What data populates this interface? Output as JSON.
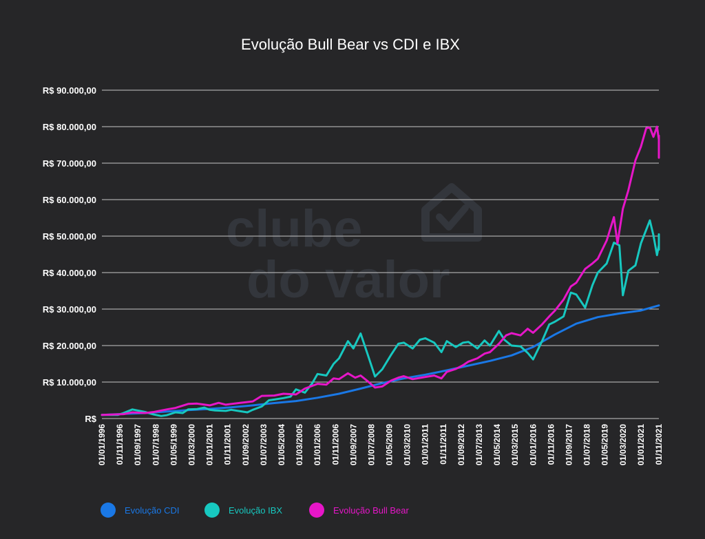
{
  "chart_data": {
    "type": "line",
    "title": "Evolução  Bull  Bear vs CDI e IBX",
    "xlabel": "",
    "ylabel": "",
    "ylim": [
      0,
      90000
    ],
    "y_ticks": [
      0,
      10000,
      20000,
      30000,
      40000,
      50000,
      60000,
      70000,
      80000,
      90000
    ],
    "y_tick_labels": [
      "R$",
      "R$ 10.000,00",
      "R$ 20.000,00",
      "R$ 30.000,00",
      "R$ 40.000,00",
      "R$ 50.000,00",
      "R$ 60.000,00",
      "R$ 70.000,00",
      "R$ 80.000,00",
      "R$ 90.000,00"
    ],
    "x_tick_labels": [
      "01/01/1996",
      "01/11/1996",
      "01/09/1997",
      "01/07/1998",
      "01/05/1999",
      "01/03/2000",
      "01/01/2001",
      "01/11/2001",
      "01/09/2002",
      "01/07/2003",
      "01/05/2004",
      "01/03/2005",
      "01/01/2006",
      "01/11/2006",
      "01/09/2007",
      "01/07/2008",
      "01/05/2009",
      "01/03/2010",
      "01/01/2011",
      "01/11/2011",
      "01/09/2012",
      "01/07/2013",
      "01/05/2014",
      "01/03/2015",
      "01/01/2016",
      "01/11/2016",
      "01/09/2017",
      "01/07/2018",
      "01/05/2019",
      "01/03/2020",
      "01/01/2021",
      "01/11/2021"
    ],
    "x_range": [
      "1996-01-01",
      "2021-11-01"
    ],
    "grid": true,
    "legend_position": "bottom-left",
    "series": [
      {
        "name": "Evolução CDI",
        "color": "#1a78e6",
        "points": [
          [
            "1996-01-01",
            1000
          ],
          [
            "1997-01-01",
            1280
          ],
          [
            "1998-01-01",
            1500
          ],
          [
            "1999-01-01",
            1900
          ],
          [
            "2000-01-01",
            2300
          ],
          [
            "2001-01-01",
            2650
          ],
          [
            "2002-01-01",
            3050
          ],
          [
            "2003-01-01",
            3600
          ],
          [
            "2004-01-01",
            4250
          ],
          [
            "2005-01-01",
            4800
          ],
          [
            "2006-01-01",
            5700
          ],
          [
            "2007-01-01",
            6800
          ],
          [
            "2008-01-01",
            8200
          ],
          [
            "2009-01-01",
            9700
          ],
          [
            "2010-01-01",
            11000
          ],
          [
            "2011-01-01",
            12000
          ],
          [
            "2012-01-01",
            13200
          ],
          [
            "2013-01-01",
            14500
          ],
          [
            "2014-01-01",
            15800
          ],
          [
            "2015-01-01",
            17300
          ],
          [
            "2016-01-01",
            19600
          ],
          [
            "2017-01-01",
            23000
          ],
          [
            "2018-01-01",
            26000
          ],
          [
            "2019-01-01",
            27800
          ],
          [
            "2020-01-01",
            28800
          ],
          [
            "2021-01-01",
            29600
          ],
          [
            "2021-11-01",
            31000
          ]
        ]
      },
      {
        "name": "Evolução IBX",
        "color": "#17c8c0",
        "points": [
          [
            "1996-01-01",
            1000
          ],
          [
            "1996-10-01",
            1000
          ],
          [
            "1997-01-01",
            1500
          ],
          [
            "1997-06-01",
            2500
          ],
          [
            "1998-01-01",
            1800
          ],
          [
            "1998-06-01",
            1100
          ],
          [
            "1998-10-01",
            700
          ],
          [
            "1999-01-01",
            900
          ],
          [
            "1999-06-01",
            1700
          ],
          [
            "1999-10-01",
            1500
          ],
          [
            "2000-01-01",
            2500
          ],
          [
            "2000-06-01",
            2600
          ],
          [
            "2000-10-01",
            3000
          ],
          [
            "2001-01-01",
            2400
          ],
          [
            "2001-04-01",
            2200
          ],
          [
            "2001-10-01",
            2100
          ],
          [
            "2002-01-01",
            2400
          ],
          [
            "2002-06-01",
            2000
          ],
          [
            "2002-10-01",
            1700
          ],
          [
            "2003-01-01",
            2400
          ],
          [
            "2003-06-01",
            3300
          ],
          [
            "2003-10-01",
            5000
          ],
          [
            "2004-01-01",
            5200
          ],
          [
            "2004-06-01",
            5600
          ],
          [
            "2004-10-01",
            6000
          ],
          [
            "2005-01-01",
            8000
          ],
          [
            "2005-06-01",
            7100
          ],
          [
            "2005-10-01",
            9600
          ],
          [
            "2006-01-01",
            12200
          ],
          [
            "2006-06-01",
            11800
          ],
          [
            "2006-10-01",
            15000
          ],
          [
            "2007-01-01",
            16500
          ],
          [
            "2007-06-01",
            21200
          ],
          [
            "2007-09-01",
            19200
          ],
          [
            "2008-01-01",
            23300
          ],
          [
            "2008-05-01",
            17500
          ],
          [
            "2008-09-01",
            11500
          ],
          [
            "2009-01-01",
            13500
          ],
          [
            "2009-06-01",
            17500
          ],
          [
            "2009-10-01",
            20500
          ],
          [
            "2010-01-01",
            20800
          ],
          [
            "2010-06-01",
            19200
          ],
          [
            "2010-10-01",
            21600
          ],
          [
            "2011-01-01",
            22000
          ],
          [
            "2011-06-01",
            20800
          ],
          [
            "2011-10-01",
            18200
          ],
          [
            "2012-01-01",
            21200
          ],
          [
            "2012-06-01",
            19600
          ],
          [
            "2012-10-01",
            20800
          ],
          [
            "2013-01-01",
            21000
          ],
          [
            "2013-06-01",
            19200
          ],
          [
            "2013-10-01",
            21400
          ],
          [
            "2014-01-01",
            20000
          ],
          [
            "2014-06-01",
            24000
          ],
          [
            "2014-09-01",
            21600
          ],
          [
            "2015-01-01",
            20000
          ],
          [
            "2015-06-01",
            19800
          ],
          [
            "2015-10-01",
            18000
          ],
          [
            "2016-01-01",
            16200
          ],
          [
            "2016-06-01",
            21200
          ],
          [
            "2016-10-01",
            25800
          ],
          [
            "2017-01-01",
            26500
          ],
          [
            "2017-06-01",
            28000
          ],
          [
            "2017-10-01",
            34500
          ],
          [
            "2018-01-01",
            34000
          ],
          [
            "2018-06-01",
            30400
          ],
          [
            "2018-10-01",
            36500
          ],
          [
            "2019-01-01",
            40000
          ],
          [
            "2019-06-01",
            42500
          ],
          [
            "2019-10-01",
            48200
          ],
          [
            "2020-01-01",
            47500
          ],
          [
            "2020-03-01",
            33800
          ],
          [
            "2020-06-01",
            40500
          ],
          [
            "2020-10-01",
            42000
          ],
          [
            "2021-01-01",
            48000
          ],
          [
            "2021-06-01",
            54300
          ],
          [
            "2021-08-01",
            50200
          ],
          [
            "2021-10-01",
            44800
          ],
          [
            "2021-11-01",
            47500
          ],
          [
            "2021-12-01",
            50500
          ],
          [
            "2022-01-01",
            46300
          ]
        ]
      },
      {
        "name": "Evolução Bull Bear",
        "color": "#e616c8",
        "points": [
          [
            "1996-01-01",
            1000
          ],
          [
            "1997-01-01",
            1200
          ],
          [
            "1997-06-01",
            1700
          ],
          [
            "1998-01-01",
            1500
          ],
          [
            "1998-06-01",
            1800
          ],
          [
            "1999-01-01",
            2500
          ],
          [
            "1999-06-01",
            2900
          ],
          [
            "2000-01-01",
            4000
          ],
          [
            "2000-06-01",
            4100
          ],
          [
            "2001-01-01",
            3600
          ],
          [
            "2001-06-01",
            4300
          ],
          [
            "2001-10-01",
            3800
          ],
          [
            "2002-01-01",
            4000
          ],
          [
            "2002-06-01",
            4300
          ],
          [
            "2003-01-01",
            4700
          ],
          [
            "2003-06-01",
            6200
          ],
          [
            "2004-01-01",
            6300
          ],
          [
            "2004-06-01",
            6800
          ],
          [
            "2005-01-01",
            6600
          ],
          [
            "2005-06-01",
            8200
          ],
          [
            "2006-01-01",
            9500
          ],
          [
            "2006-06-01",
            9300
          ],
          [
            "2006-10-01",
            11000
          ],
          [
            "2007-01-01",
            10800
          ],
          [
            "2007-06-01",
            12400
          ],
          [
            "2007-10-01",
            11200
          ],
          [
            "2008-01-01",
            11800
          ],
          [
            "2008-05-01",
            10200
          ],
          [
            "2008-09-01",
            8500
          ],
          [
            "2009-01-01",
            8800
          ],
          [
            "2009-06-01",
            10400
          ],
          [
            "2009-10-01",
            11200
          ],
          [
            "2010-01-01",
            11600
          ],
          [
            "2010-06-01",
            10800
          ],
          [
            "2011-01-01",
            11400
          ],
          [
            "2011-06-01",
            11800
          ],
          [
            "2011-10-01",
            11000
          ],
          [
            "2012-01-01",
            12800
          ],
          [
            "2012-06-01",
            13600
          ],
          [
            "2012-10-01",
            14600
          ],
          [
            "2013-01-01",
            15600
          ],
          [
            "2013-06-01",
            16500
          ],
          [
            "2013-10-01",
            17800
          ],
          [
            "2014-01-01",
            18200
          ],
          [
            "2014-06-01",
            20500
          ],
          [
            "2014-10-01",
            22800
          ],
          [
            "2015-01-01",
            23400
          ],
          [
            "2015-06-01",
            22800
          ],
          [
            "2015-10-01",
            24600
          ],
          [
            "2016-01-01",
            23500
          ],
          [
            "2016-06-01",
            25800
          ],
          [
            "2016-10-01",
            28000
          ],
          [
            "2017-01-01",
            29500
          ],
          [
            "2017-06-01",
            32600
          ],
          [
            "2017-10-01",
            36200
          ],
          [
            "2018-01-01",
            37200
          ],
          [
            "2018-06-01",
            41000
          ],
          [
            "2018-10-01",
            42500
          ],
          [
            "2019-01-01",
            43800
          ],
          [
            "2019-06-01",
            48800
          ],
          [
            "2019-10-01",
            55200
          ],
          [
            "2019-12-01",
            48000
          ],
          [
            "2020-03-01",
            57500
          ],
          [
            "2020-06-01",
            62500
          ],
          [
            "2020-10-01",
            70800
          ],
          [
            "2021-01-01",
            74500
          ],
          [
            "2021-04-01",
            79600
          ],
          [
            "2021-06-01",
            79800
          ],
          [
            "2021-08-01",
            77200
          ],
          [
            "2021-10-01",
            80000
          ],
          [
            "2021-11-01",
            76500
          ],
          [
            "2021-12-01",
            77500
          ],
          [
            "2022-01-01",
            71500
          ]
        ]
      }
    ]
  },
  "watermark": {
    "line1": "clube",
    "line2": "do valor",
    "icon": "house-check-icon"
  }
}
